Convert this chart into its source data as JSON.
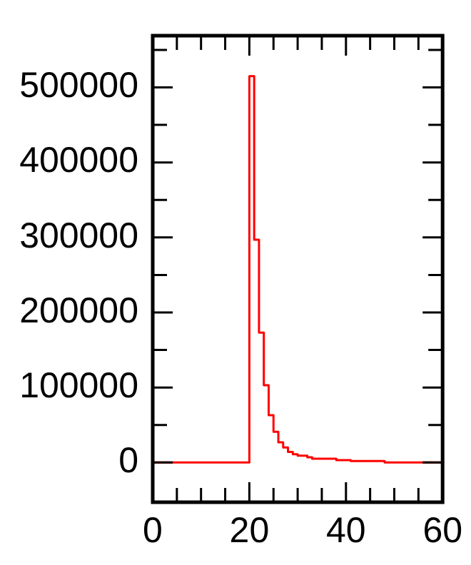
{
  "chart_data": {
    "type": "histogram",
    "color": "#ff0000",
    "bins": [
      0,
      20,
      21,
      22,
      23,
      24,
      25,
      26,
      27,
      28,
      29,
      30,
      32,
      33,
      38,
      41,
      48,
      60
    ],
    "values": [
      0,
      515000,
      297000,
      173000,
      103000,
      63000,
      41000,
      27000,
      20000,
      14000,
      11000,
      9000,
      7000,
      5000,
      3000,
      2000,
      0
    ],
    "xlim": [
      0,
      60
    ],
    "xticks": [
      0,
      {
        "value": 5,
        "label": null
      },
      {
        "value": 10,
        "label": null
      },
      {
        "value": 15,
        "label": null
      },
      20,
      {
        "value": 25,
        "label": null
      },
      {
        "value": 30,
        "label": null
      },
      {
        "value": 35,
        "label": null
      },
      40,
      {
        "value": 45,
        "label": null
      },
      {
        "value": 50,
        "label": null
      },
      {
        "value": 55,
        "label": null
      },
      60
    ],
    "ylim": [
      -53000,
      569000
    ],
    "yticks": [
      0,
      {
        "value": 50000,
        "label": null
      },
      100000,
      {
        "value": 150000,
        "label": null
      },
      200000,
      {
        "value": 250000,
        "label": null
      },
      300000,
      {
        "value": 350000,
        "label": null
      },
      400000,
      {
        "value": 450000,
        "label": null
      },
      500000,
      {
        "value": 550000,
        "label": null
      }
    ],
    "grid": false,
    "legend": false
  }
}
